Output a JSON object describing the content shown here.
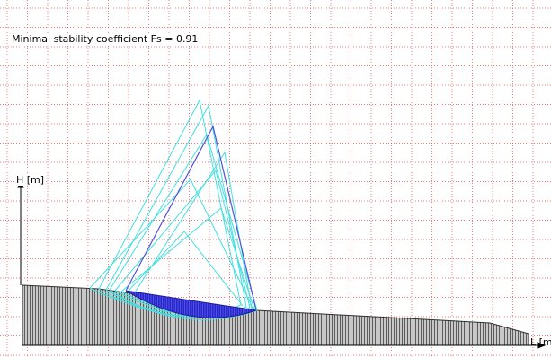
{
  "result": {
    "fs_text": "Minimal stability coefficient Fs = 0.91"
  },
  "axes": {
    "y_label": "H [m]",
    "x_label": "L [m"
  },
  "colors": {
    "grid": "#e05050",
    "slope_fill": "#c8c8c8",
    "slope_hatch": "#404040",
    "circles": "#40e0e0",
    "critical_circle": "#5050e0",
    "sliding_mass": "#2020c8"
  }
}
